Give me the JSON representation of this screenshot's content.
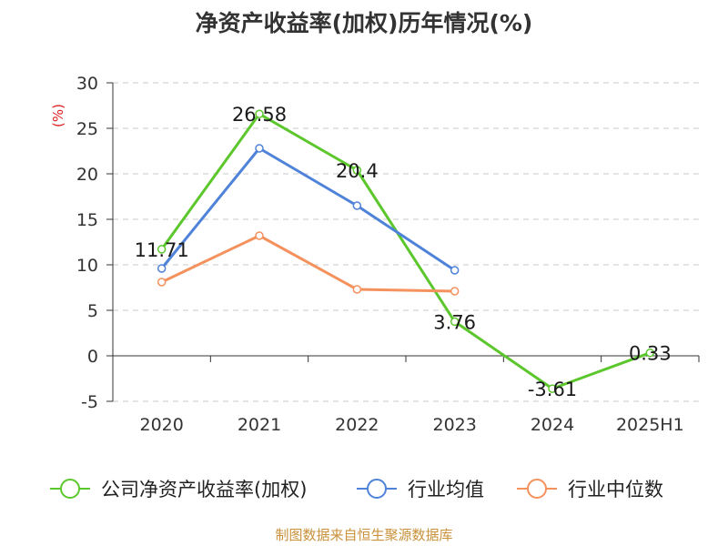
{
  "chart_data": {
    "type": "line",
    "title": "净资产收益率(加权)历年情况(%)",
    "ylabel": "(%)",
    "categories": [
      "2020",
      "2021",
      "2022",
      "2023",
      "2024",
      "2025H1"
    ],
    "ylim": [
      -5,
      30
    ],
    "yticks": [
      -5,
      0,
      5,
      10,
      15,
      20,
      25,
      30
    ],
    "grid": true,
    "legend_position": "bottom",
    "series": [
      {
        "name": "公司净资产收益率(加权)",
        "color": "#5cc72c",
        "show_labels": true,
        "values": [
          11.71,
          26.58,
          20.4,
          3.76,
          -3.61,
          0.33
        ],
        "labels": [
          "11.71",
          "26.58",
          "20.4",
          "3.76",
          "-3.61",
          "0.33"
        ]
      },
      {
        "name": "行业均值",
        "color": "#4f82d9",
        "show_labels": false,
        "values": [
          9.6,
          22.8,
          16.5,
          9.4,
          null,
          null
        ]
      },
      {
        "name": "行业中位数",
        "color": "#f4915d",
        "show_labels": false,
        "values": [
          8.1,
          13.2,
          7.3,
          7.1,
          null,
          null
        ]
      }
    ],
    "unit_color": "#e02020"
  },
  "source": "制图数据来自恒生聚源数据库"
}
